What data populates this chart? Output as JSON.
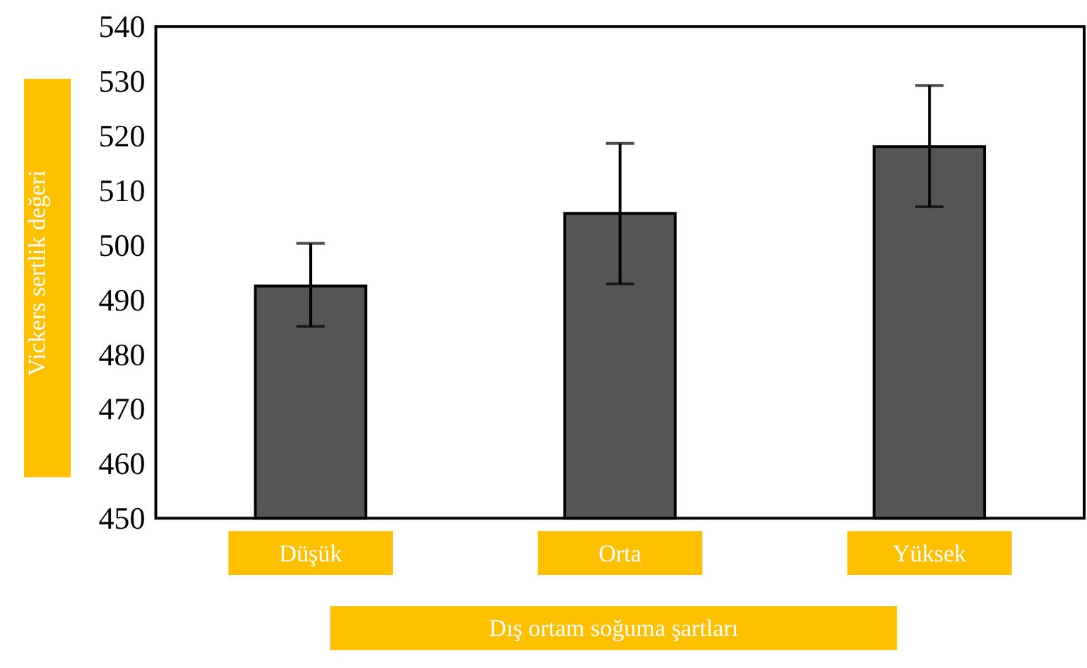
{
  "chart_data": {
    "type": "bar",
    "xlabel": "Dış ortam soğuma şartları",
    "ylabel": "Vickers sertlik değeri",
    "categories": [
      "Düşük",
      "Orta",
      "Yüksek"
    ],
    "values": [
      492.5,
      505.8,
      518.0
    ],
    "errors": [
      [
        485.1,
        500.3
      ],
      [
        492.9,
        518.6
      ],
      [
        507.0,
        529.2
      ]
    ],
    "color": "#555555",
    "ylim": [
      450,
      540
    ],
    "yticks": [
      450,
      460,
      470,
      480,
      490,
      500,
      510,
      520,
      530,
      540
    ],
    "grid": false
  }
}
